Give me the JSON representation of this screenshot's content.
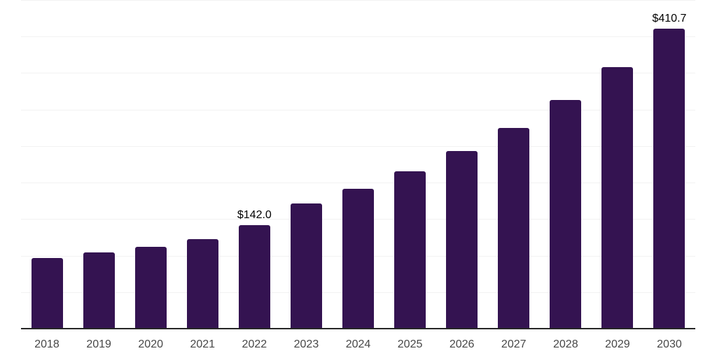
{
  "chart_data": {
    "type": "bar",
    "title": "",
    "xlabel": "",
    "ylabel": "",
    "categories": [
      "2018",
      "2019",
      "2020",
      "2021",
      "2022",
      "2023",
      "2024",
      "2025",
      "2026",
      "2027",
      "2028",
      "2029",
      "2030"
    ],
    "values": [
      97.1,
      104.4,
      111.8,
      123.0,
      142.0,
      171.8,
      191.4,
      215.4,
      243.5,
      275.1,
      312.8,
      357.8,
      410.7
    ],
    "value_labels": {
      "2022": "$142.0",
      "2030": "$410.7"
    },
    "ylim": [
      0,
      450
    ],
    "gridline_step": 50,
    "grid": "horizontal-only",
    "legend_position": "none",
    "colors": {
      "bar": "#341351",
      "gridline": "#f2f2f2",
      "axis_line": "#262626",
      "tick_label": "#474747",
      "value_label": "#000000",
      "background": "#ffffff"
    }
  }
}
